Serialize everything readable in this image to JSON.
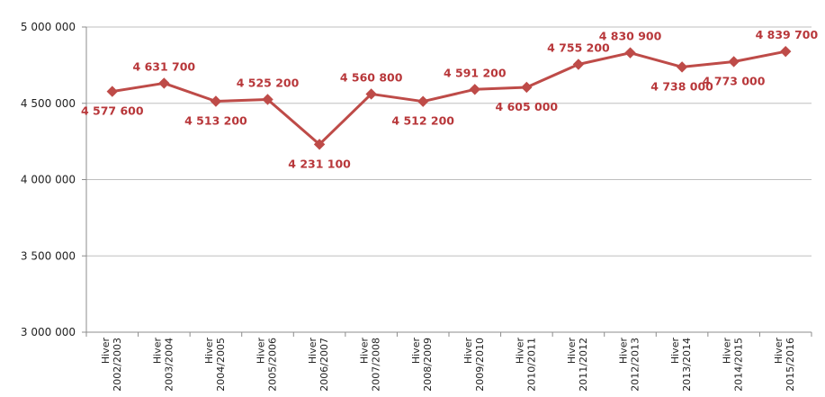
{
  "chart_data": {
    "type": "line",
    "title": "",
    "xlabel": "",
    "ylabel": "",
    "ylim": [
      3000000,
      5000000
    ],
    "y_ticks": [
      3000000,
      3500000,
      4000000,
      4500000,
      5000000
    ],
    "y_tick_labels": [
      "3 000 000",
      "3 500 000",
      "4 000 000",
      "4 500 000",
      "5 000 000"
    ],
    "grid": "horizontal",
    "categories": [
      [
        "Hiver",
        "2002/2003"
      ],
      [
        "Hiver",
        "2003/2004"
      ],
      [
        "Hiver",
        "2004/2005"
      ],
      [
        "Hiver",
        "2005/2006"
      ],
      [
        "Hiver",
        "2006/2007"
      ],
      [
        "Hiver",
        "2007/2008"
      ],
      [
        "Hiver",
        "2008/2009"
      ],
      [
        "Hiver",
        "2009/2010"
      ],
      [
        "Hiver",
        "2010/2011"
      ],
      [
        "Hiver",
        "2011/2012"
      ],
      [
        "Hiver",
        "2012/2013"
      ],
      [
        "Hiver",
        "2013/2014"
      ],
      [
        "Hiver",
        "2014/2015"
      ],
      [
        "Hiver",
        "2015/2016"
      ]
    ],
    "series": [
      {
        "values": [
          4577600,
          4631700,
          4513200,
          4525200,
          4231100,
          4560800,
          4512200,
          4591200,
          4605000,
          4755200,
          4830900,
          4738000,
          4773000,
          4839700
        ],
        "labels": [
          "4 577 600",
          "4 631 700",
          "4 513 200",
          "4 525 200",
          "4 231 100",
          "4 560 800",
          "4 512 200",
          "4 591 200",
          "4 605 000",
          "4 755 200",
          "4 830 900",
          "4 738 000",
          "4 773 000",
          "4 839 700"
        ],
        "label_positions": [
          "below",
          "above",
          "below",
          "above",
          "below",
          "above",
          "below",
          "above",
          "below",
          "above",
          "above",
          "below",
          "below",
          "above"
        ],
        "color": "#be4b48",
        "marker": "diamond"
      }
    ],
    "grid_color": "#bfbfbf",
    "axis_color": "#8c8c8c"
  }
}
